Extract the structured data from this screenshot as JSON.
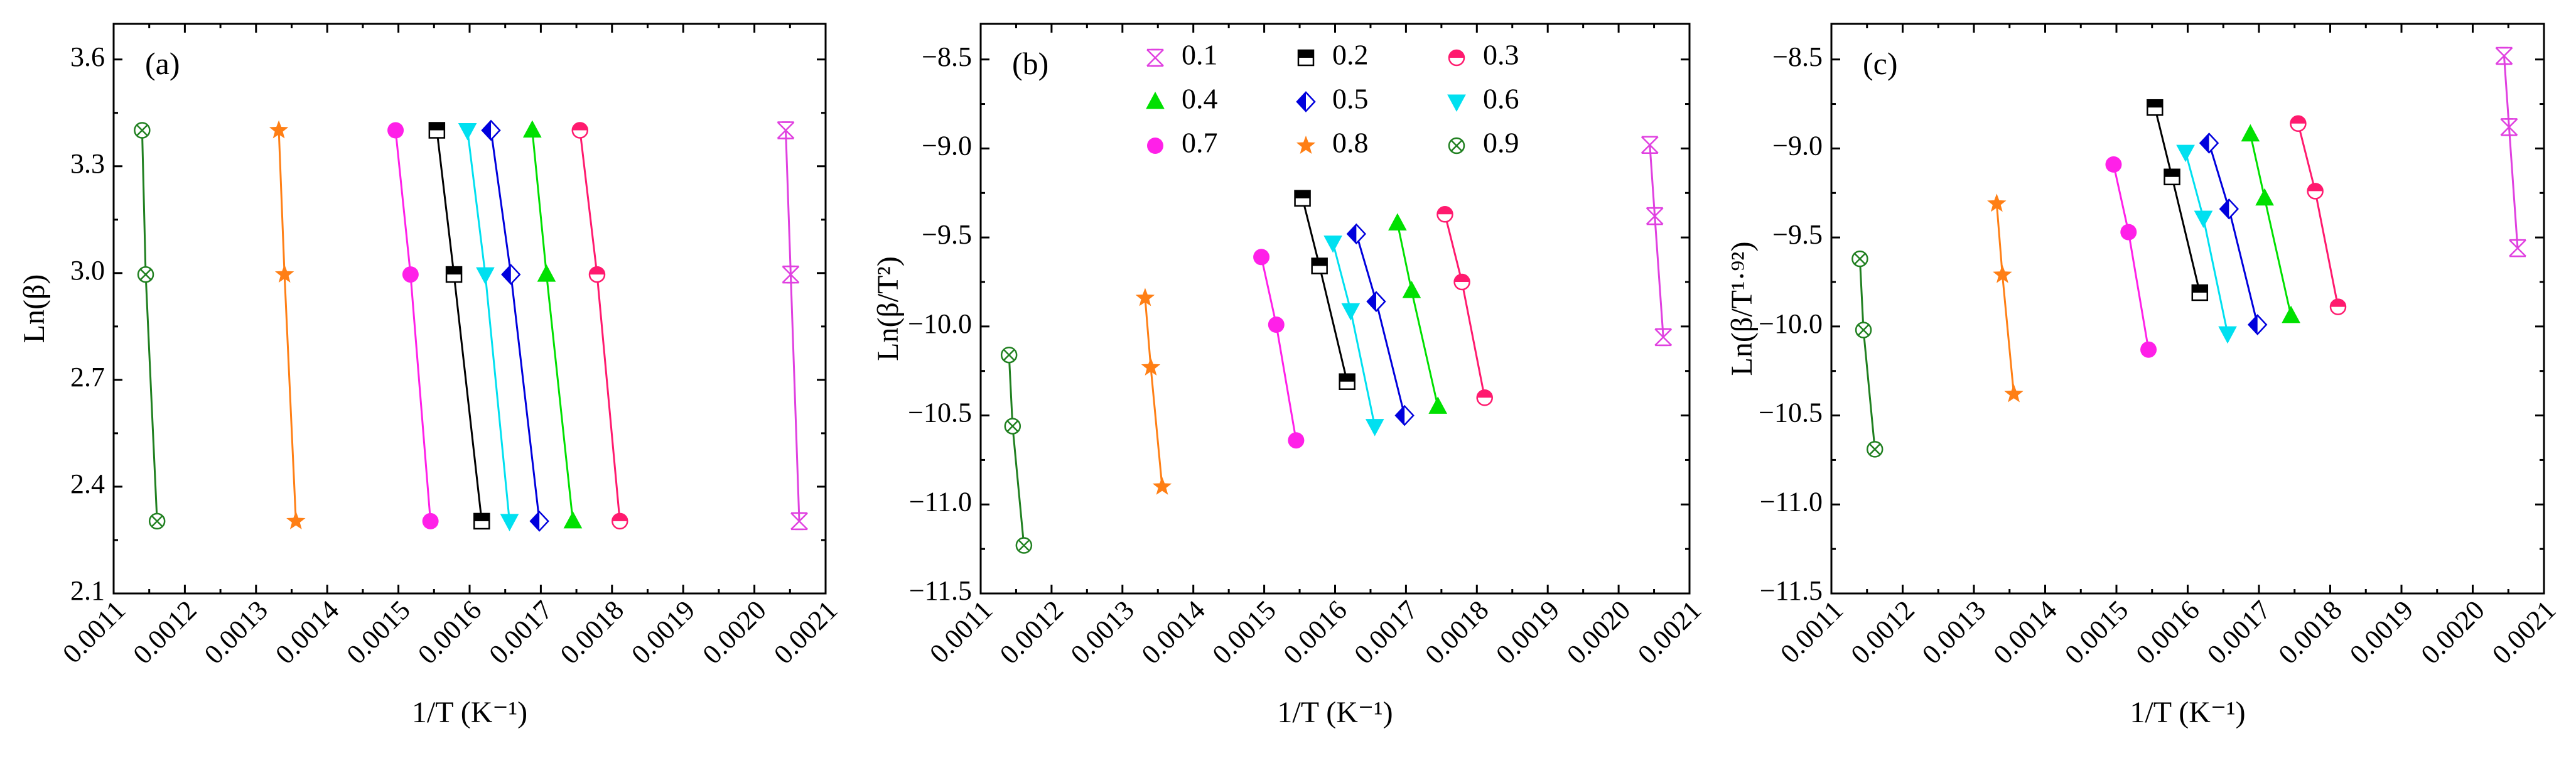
{
  "series_styles": [
    {
      "name": "0.1",
      "color": "#e040e0",
      "marker": "cross-x"
    },
    {
      "name": "0.2",
      "color": "#000000",
      "marker": "half-square"
    },
    {
      "name": "0.3",
      "color": "#ff1a6e",
      "marker": "half-circle"
    },
    {
      "name": "0.4",
      "color": "#00e000",
      "marker": "triangle-up"
    },
    {
      "name": "0.5",
      "color": "#0000dd",
      "marker": "half-diamond"
    },
    {
      "name": "0.6",
      "color": "#00e0f0",
      "marker": "triangle-down"
    },
    {
      "name": "0.7",
      "color": "#ff20e8",
      "marker": "circle"
    },
    {
      "name": "0.8",
      "color": "#ff7f15",
      "marker": "star"
    },
    {
      "name": "0.9",
      "color": "#208020",
      "marker": "circle-x"
    }
  ],
  "chart_data": [
    {
      "type": "scatter",
      "panel": "(a)",
      "xlabel": "1/T (K⁻¹)",
      "ylabel": "Ln(β)",
      "xlim": [
        0.0011,
        0.0021
      ],
      "ylim": [
        2.1,
        3.7
      ],
      "xticks": [
        "0.0011",
        "0.0012",
        "0.0013",
        "0.0014",
        "0.0015",
        "0.0016",
        "0.0017",
        "0.0018",
        "0.0019",
        "0.0020",
        "0.0021"
      ],
      "yticks": [
        "2.1",
        "2.4",
        "2.7",
        "3.0",
        "3.3",
        "3.6"
      ],
      "legend": false,
      "series": [
        {
          "name": "0.1",
          "x": [
            0.002044,
            0.002051,
            0.002063
          ],
          "y": [
            3.401,
            2.996,
            2.303
          ]
        },
        {
          "name": "0.2",
          "x": [
            0.001554,
            0.001578,
            0.001617
          ],
          "y": [
            3.401,
            2.996,
            2.303
          ]
        },
        {
          "name": "0.3",
          "x": [
            0.001755,
            0.001779,
            0.001811
          ],
          "y": [
            3.401,
            2.996,
            2.303
          ]
        },
        {
          "name": "0.4",
          "x": [
            0.001688,
            0.001708,
            0.001745
          ],
          "y": [
            3.401,
            2.996,
            2.303
          ]
        },
        {
          "name": "0.5",
          "x": [
            0.00163,
            0.001658,
            0.001698
          ],
          "y": [
            3.401,
            2.996,
            2.303
          ]
        },
        {
          "name": "0.6",
          "x": [
            0.001597,
            0.001622,
            0.001656
          ],
          "y": [
            3.401,
            2.996,
            2.303
          ]
        },
        {
          "name": "0.7",
          "x": [
            0.001496,
            0.001517,
            0.001545
          ],
          "y": [
            3.401,
            2.996,
            2.303
          ]
        },
        {
          "name": "0.8",
          "x": [
            0.001332,
            0.00134,
            0.001356
          ],
          "y": [
            3.401,
            2.996,
            2.303
          ]
        },
        {
          "name": "0.9",
          "x": [
            0.00114,
            0.001145,
            0.001161
          ],
          "y": [
            3.401,
            2.996,
            2.303
          ]
        }
      ]
    },
    {
      "type": "scatter",
      "panel": "(b)",
      "xlabel": "1/T (K⁻¹)",
      "ylabel": "Ln(β/T²)",
      "xlim": [
        0.0011,
        0.0021
      ],
      "ylim": [
        -11.5,
        -8.3
      ],
      "xticks": [
        "0.0011",
        "0.0012",
        "0.0013",
        "0.0014",
        "0.0015",
        "0.0016",
        "0.0017",
        "0.0018",
        "0.0019",
        "0.0020",
        "0.0021"
      ],
      "yticks": [
        "-11.5",
        "-11.0",
        "-10.5",
        "-10.0",
        "-9.5",
        "-9.0",
        "-8.5"
      ],
      "legend": true,
      "series": [
        {
          "name": "0.1",
          "x": [
            0.002044,
            0.002051,
            0.002063
          ],
          "y": [
            -8.98,
            -9.38,
            -10.06
          ]
        },
        {
          "name": "0.2",
          "x": [
            0.001554,
            0.001578,
            0.001617
          ],
          "y": [
            -9.28,
            -9.66,
            -10.31
          ]
        },
        {
          "name": "0.3",
          "x": [
            0.001755,
            0.001779,
            0.001811
          ],
          "y": [
            -9.37,
            -9.75,
            -10.4
          ]
        },
        {
          "name": "0.4",
          "x": [
            0.001688,
            0.001708,
            0.001745
          ],
          "y": [
            -9.42,
            -9.8,
            -10.45
          ]
        },
        {
          "name": "0.5",
          "x": [
            0.00163,
            0.001658,
            0.001698
          ],
          "y": [
            -9.48,
            -9.86,
            -10.5
          ]
        },
        {
          "name": "0.6",
          "x": [
            0.001597,
            0.001622,
            0.001656
          ],
          "y": [
            -9.53,
            -9.91,
            -10.56
          ]
        },
        {
          "name": "0.7",
          "x": [
            0.001496,
            0.001517,
            0.001545
          ],
          "y": [
            -9.61,
            -9.99,
            -10.64
          ]
        },
        {
          "name": "0.8",
          "x": [
            0.001332,
            0.00134,
            0.001356
          ],
          "y": [
            -9.84,
            -10.23,
            -10.9
          ]
        },
        {
          "name": "0.9",
          "x": [
            0.00114,
            0.001145,
            0.001161
          ],
          "y": [
            -10.16,
            -10.56,
            -11.23
          ]
        }
      ]
    },
    {
      "type": "scatter",
      "panel": "(c)",
      "xlabel": "1/T (K⁻¹)",
      "ylabel": "Ln(β/T¹·⁹²)",
      "xlim": [
        0.0011,
        0.0021
      ],
      "ylim": [
        -11.5,
        -8.3
      ],
      "xticks": [
        "0.0011",
        "0.0012",
        "0.0013",
        "0.0014",
        "0.0015",
        "0.0016",
        "0.0017",
        "0.0018",
        "0.0019",
        "0.0020",
        "0.0021"
      ],
      "yticks": [
        "-11.5",
        "-11.0",
        "-10.5",
        "-10.0",
        "-9.5",
        "-9.0",
        "-8.5"
      ],
      "legend": false,
      "series": [
        {
          "name": "0.1",
          "x": [
            0.002044,
            0.002051,
            0.002063
          ],
          "y": [
            -8.48,
            -8.88,
            -9.56
          ]
        },
        {
          "name": "0.2",
          "x": [
            0.001554,
            0.001578,
            0.001617
          ],
          "y": [
            -8.77,
            -9.16,
            -9.81
          ]
        },
        {
          "name": "0.3",
          "x": [
            0.001755,
            0.001779,
            0.001811
          ],
          "y": [
            -8.86,
            -9.24,
            -9.89
          ]
        },
        {
          "name": "0.4",
          "x": [
            0.001688,
            0.001708,
            0.001745
          ],
          "y": [
            -8.92,
            -9.28,
            -9.94
          ]
        },
        {
          "name": "0.5",
          "x": [
            0.00163,
            0.001658,
            0.001698
          ],
          "y": [
            -8.97,
            -9.34,
            -9.99
          ]
        },
        {
          "name": "0.6",
          "x": [
            0.001597,
            0.001622,
            0.001656
          ],
          "y": [
            -9.02,
            -9.39,
            -10.04
          ]
        },
        {
          "name": "0.7",
          "x": [
            0.001496,
            0.001517,
            0.001545
          ],
          "y": [
            -9.09,
            -9.47,
            -10.13
          ]
        },
        {
          "name": "0.8",
          "x": [
            0.001332,
            0.00134,
            0.001356
          ],
          "y": [
            -9.31,
            -9.71,
            -10.38
          ]
        },
        {
          "name": "0.9",
          "x": [
            0.00114,
            0.001145,
            0.001161
          ],
          "y": [
            -9.62,
            -10.02,
            -10.69
          ]
        }
      ]
    }
  ]
}
